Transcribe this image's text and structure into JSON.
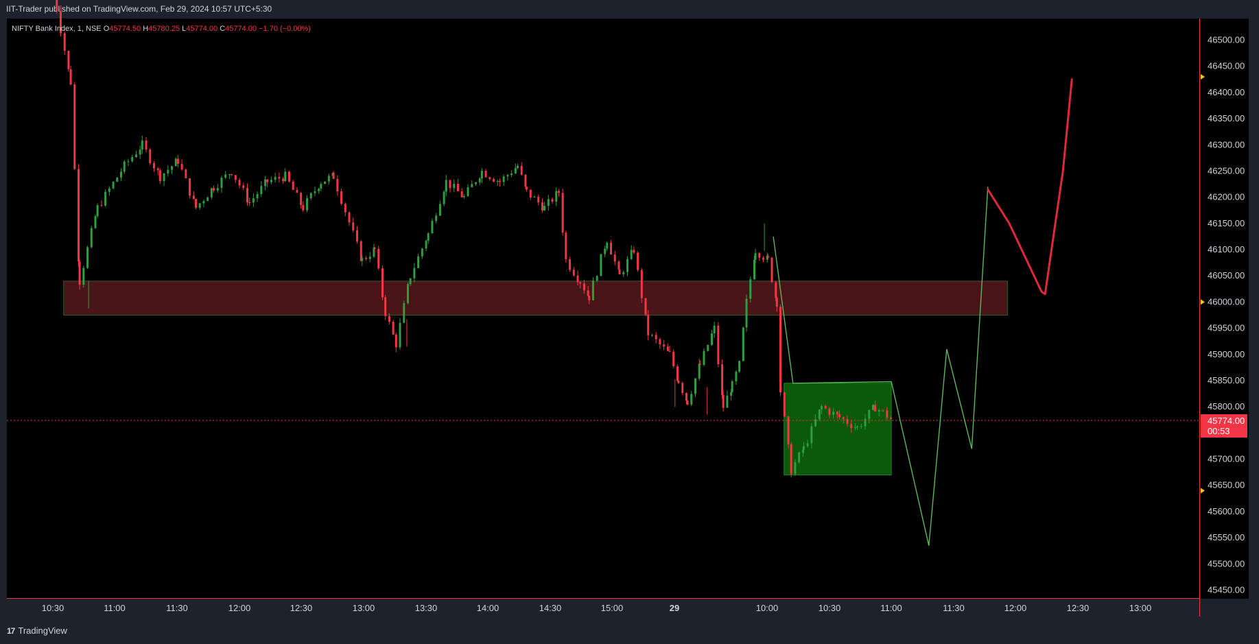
{
  "header": {
    "published": "IIT-Trader published on TradingView.com, Feb 29, 2024 10:57 UTC+5:30"
  },
  "legend": {
    "symbol": "NIFTY Bank Index, 1, NSE",
    "o_label": "O",
    "o_value": "45774.50",
    "h_label": "H",
    "h_value": "45780.25",
    "l_label": "L",
    "l_value": "45774.00",
    "c_label": "C",
    "c_value": "45774.00",
    "change": "−1.70 (−0.00%)"
  },
  "price_badge": {
    "price": "45774.00",
    "countdown": "00:53"
  },
  "footer": {
    "brand": "TradingView",
    "brand_mark": "17"
  },
  "colors": {
    "up": "#26a69a",
    "candle_up": "#2e9e3e",
    "candle_down": "#f23645",
    "zone_red": "#4a1519",
    "zone_green": "#0a5a0a",
    "projection": "#5cb85c",
    "path_red": "#e0283c",
    "axis_border": "#f23645"
  },
  "chart_data": {
    "type": "candlestick",
    "ylim": [
      45425,
      46575
    ],
    "y_ticks": [
      "46500.00",
      "46450.00",
      "46400.00",
      "46350.00",
      "46300.00",
      "46250.00",
      "46200.00",
      "46150.00",
      "46100.00",
      "46050.00",
      "46000.00",
      "45950.00",
      "45900.00",
      "45850.00",
      "45800.00",
      "45700.00",
      "45650.00",
      "45600.00",
      "45550.00",
      "45500.00",
      "45450.00"
    ],
    "x_ticks": [
      "10:30",
      "11:00",
      "11:30",
      "12:00",
      "12:30",
      "13:00",
      "13:30",
      "14:00",
      "14:30",
      "15:00",
      "29",
      "10:00",
      "10:30",
      "11:00",
      "11:30",
      "12:00",
      "12:30",
      "13:00"
    ],
    "last_price": 45774,
    "price_path": [
      [
        0,
        46600
      ],
      [
        1,
        46420
      ],
      [
        1.5,
        46040
      ],
      [
        2.5,
        46180
      ],
      [
        4,
        46260
      ],
      [
        5,
        46300
      ],
      [
        6,
        46240
      ],
      [
        7,
        46270
      ],
      [
        8,
        46180
      ],
      [
        9,
        46220
      ],
      [
        10,
        46250
      ],
      [
        11,
        46190
      ],
      [
        12,
        46230
      ],
      [
        13,
        46240
      ],
      [
        14,
        46180
      ],
      [
        15,
        46230
      ],
      [
        15.7,
        46240
      ],
      [
        17.3,
        46080
      ],
      [
        18,
        46100
      ],
      [
        18.6,
        45980
      ],
      [
        19.2,
        45920
      ],
      [
        20,
        46050
      ],
      [
        21,
        46130
      ],
      [
        22,
        46230
      ],
      [
        23,
        46200
      ],
      [
        24,
        46250
      ],
      [
        25,
        46230
      ],
      [
        26,
        46260
      ],
      [
        26.5,
        46210
      ],
      [
        27.5,
        46180
      ],
      [
        28.3,
        46210
      ],
      [
        28.7,
        46080
      ],
      [
        29.5,
        46040
      ],
      [
        30,
        46010
      ],
      [
        31,
        46120
      ],
      [
        31.7,
        46050
      ],
      [
        32.5,
        46100
      ],
      [
        33.3,
        45940
      ],
      [
        34.5,
        45900
      ],
      [
        35,
        45850
      ],
      [
        35.5,
        45810
      ],
      [
        36.2,
        45880
      ],
      [
        37,
        45950
      ],
      [
        37.5,
        45800
      ],
      [
        38,
        45840
      ],
      [
        38.4,
        45880
      ],
      [
        38.8,
        46000
      ],
      [
        39.3,
        46100
      ],
      [
        40,
        46080
      ],
      [
        40.5,
        46000
      ],
      [
        40.7,
        45830
      ],
      [
        41.3,
        45680
      ],
      [
        42,
        45720
      ],
      [
        43,
        45800
      ],
      [
        44,
        45780
      ],
      [
        45,
        45760
      ],
      [
        46,
        45800
      ],
      [
        47,
        45774
      ]
    ],
    "wick_extremes": [
      [
        2,
        46040
      ],
      [
        19.8,
        45915
      ],
      [
        34.8,
        45800
      ],
      [
        36.6,
        45785
      ],
      [
        39.8,
        46150
      ],
      [
        41.3,
        45665
      ]
    ],
    "annotations": {
      "resistance_zone": {
        "from": 45975,
        "to": 46040,
        "x": [
          0.6,
          53.4
        ]
      },
      "range_box": {
        "from": 45670,
        "to": 45845,
        "x": [
          40.9,
          46.9
        ]
      },
      "projection_path": [
        [
          40.3,
          46125
        ],
        [
          41.4,
          45845
        ],
        [
          46.9,
          45848
        ],
        [
          49.0,
          45535
        ],
        [
          50.0,
          45910
        ],
        [
          51.4,
          45720
        ],
        [
          52.3,
          46220
        ]
      ],
      "bullish_path": [
        [
          52.3,
          46215
        ],
        [
          53.5,
          46150
        ],
        [
          55.3,
          46020
        ],
        [
          55.5,
          46015
        ],
        [
          56.5,
          46250
        ],
        [
          57.0,
          46425
        ]
      ]
    }
  }
}
